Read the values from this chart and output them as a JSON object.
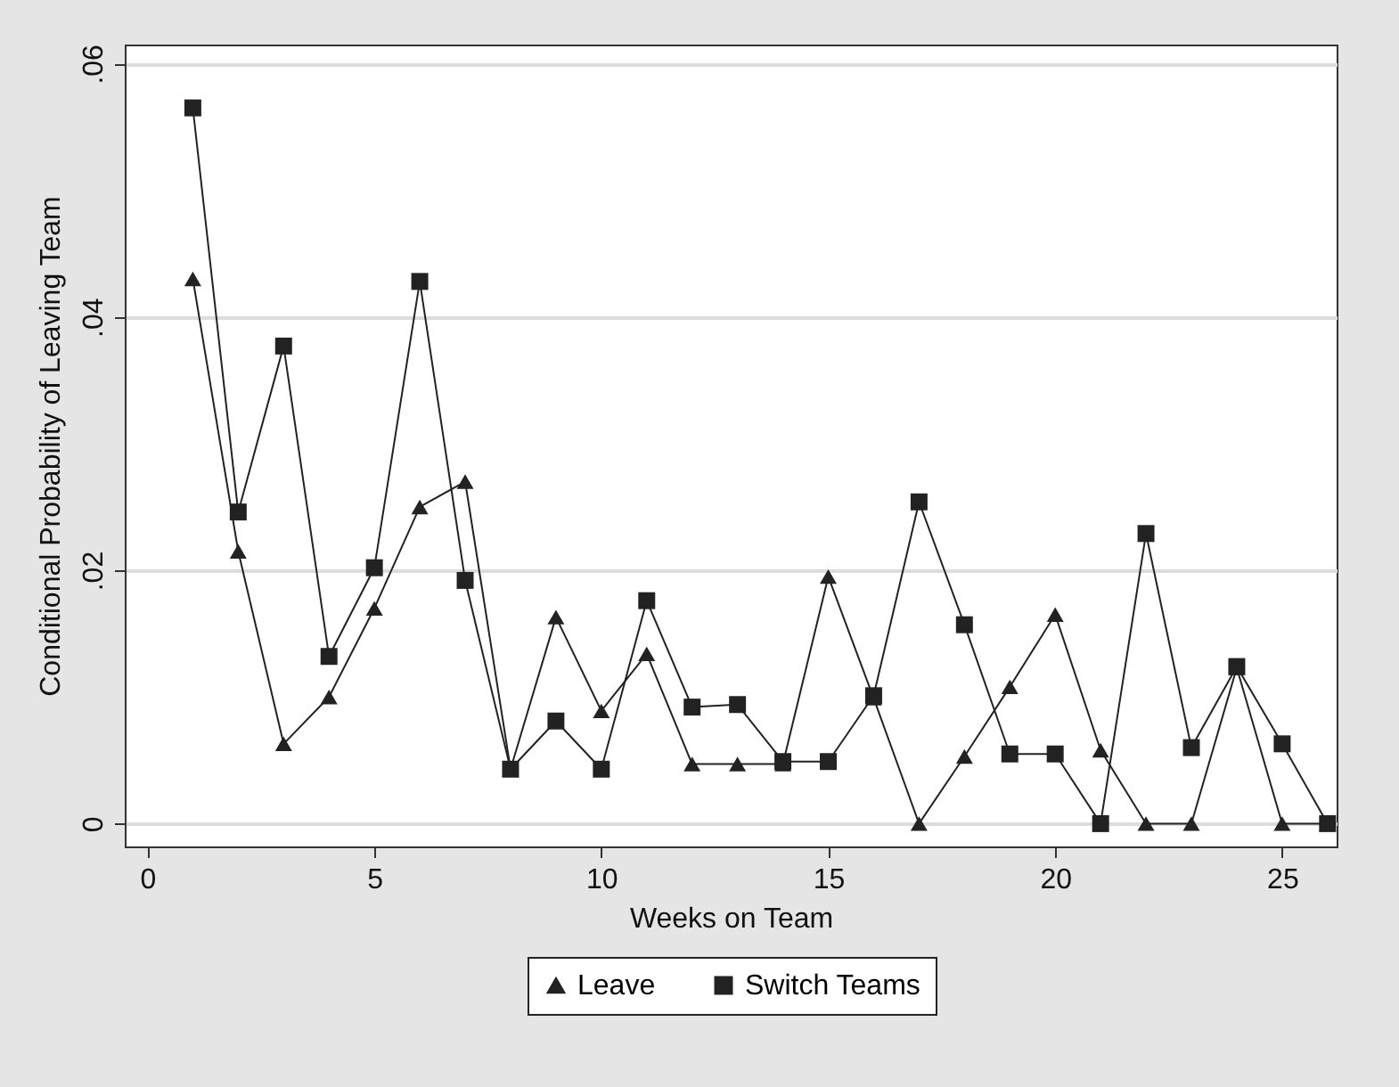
{
  "chart_data": {
    "type": "line",
    "xlabel": "Weeks on Team",
    "ylabel": "Conditional Probability of Leaving Team",
    "x": [
      1,
      2,
      3,
      4,
      5,
      6,
      7,
      8,
      9,
      10,
      11,
      12,
      13,
      14,
      15,
      16,
      17,
      18,
      19,
      20,
      21,
      22,
      23,
      24,
      25,
      26
    ],
    "series": [
      {
        "name": "Leave",
        "color": "#222222",
        "marker": "triangle",
        "values": [
          0.043,
          0.0215,
          0.0063,
          0.01,
          0.017,
          0.025,
          0.027,
          0.0043,
          0.0163,
          0.0089,
          0.0134,
          0.0047,
          0.0047,
          0.0047,
          0.0195,
          0.0099,
          0,
          0.0053,
          0.0108,
          0.0165,
          0.0058,
          0,
          0,
          0.0123,
          0,
          0
        ]
      },
      {
        "name": "Switch Teams",
        "color": "#222222",
        "marker": "square",
        "values": [
          0.0565,
          0.0246,
          0.0377,
          0.0132,
          0.0202,
          0.0428,
          0.0192,
          0.0043,
          0.0081,
          0.0043,
          0.0176,
          0.0092,
          0.0094,
          0.0049,
          0.0049,
          0.0101,
          0.0254,
          0.0157,
          0.0055,
          0.0055,
          0,
          0.0229,
          0.006,
          0.0124,
          0.0063,
          0
        ]
      }
    ],
    "xlim": [
      -0.5,
      26.2
    ],
    "xticks": [
      0,
      5,
      10,
      15,
      20,
      25
    ],
    "ylim": [
      -0.0018,
      0.0615
    ],
    "yticks": [
      {
        "value": 0,
        "label": "0"
      },
      {
        "value": 0.02,
        "label": ".02"
      },
      {
        "value": 0.04,
        "label": ".04"
      },
      {
        "value": 0.06,
        "label": ".06"
      }
    ],
    "grid": "y",
    "legend": "bottom"
  }
}
